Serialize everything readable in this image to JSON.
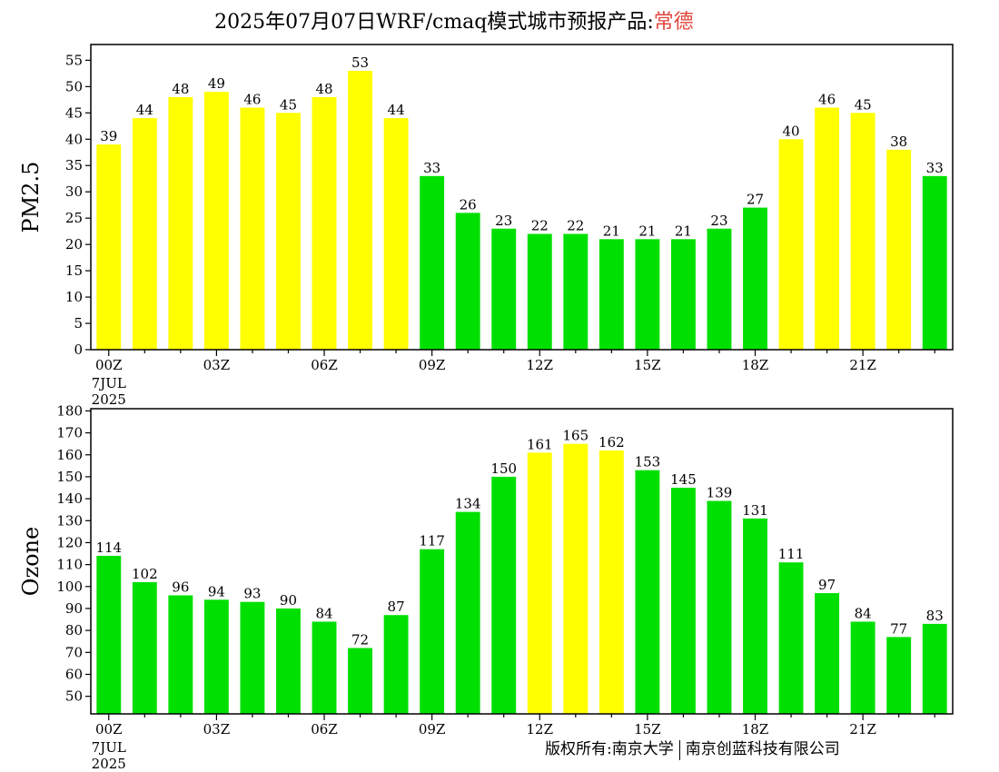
{
  "title": {
    "main": "2025年07月07日WRF/cmaq模式城市预报产品:",
    "city": "常德"
  },
  "colors": {
    "yellow": "#ffff00",
    "green": "#00e000",
    "city_red": "#e0463c"
  },
  "chart_data": [
    {
      "type": "bar",
      "ylabel": "PM2.5",
      "ylim": [
        0,
        58
      ],
      "yticks": [
        0,
        5,
        10,
        15,
        20,
        25,
        30,
        35,
        40,
        45,
        50,
        55
      ],
      "xticks": [
        {
          "index": 0,
          "label": "00Z",
          "sub": [
            "7JUL",
            "2025"
          ]
        },
        {
          "index": 3,
          "label": "03Z"
        },
        {
          "index": 6,
          "label": "06Z"
        },
        {
          "index": 9,
          "label": "09Z"
        },
        {
          "index": 12,
          "label": "12Z"
        },
        {
          "index": 15,
          "label": "15Z"
        },
        {
          "index": 18,
          "label": "18Z"
        },
        {
          "index": 21,
          "label": "21Z"
        }
      ],
      "values": [
        39,
        44,
        48,
        49,
        46,
        45,
        48,
        53,
        44,
        33,
        26,
        23,
        22,
        22,
        21,
        21,
        21,
        23,
        27,
        40,
        46,
        45,
        38,
        33
      ],
      "bar_colors": [
        "yellow",
        "yellow",
        "yellow",
        "yellow",
        "yellow",
        "yellow",
        "yellow",
        "yellow",
        "yellow",
        "green",
        "green",
        "green",
        "green",
        "green",
        "green",
        "green",
        "green",
        "green",
        "green",
        "yellow",
        "yellow",
        "yellow",
        "yellow",
        "green"
      ]
    },
    {
      "type": "bar",
      "ylabel": "Ozone",
      "ylim": [
        42,
        181
      ],
      "yticks": [
        50,
        60,
        70,
        80,
        90,
        100,
        110,
        120,
        130,
        140,
        150,
        160,
        170,
        180
      ],
      "xticks": [
        {
          "index": 0,
          "label": "00Z",
          "sub": [
            "7JUL",
            "2025"
          ]
        },
        {
          "index": 3,
          "label": "03Z"
        },
        {
          "index": 6,
          "label": "06Z"
        },
        {
          "index": 9,
          "label": "09Z"
        },
        {
          "index": 12,
          "label": "12Z"
        },
        {
          "index": 15,
          "label": "15Z"
        },
        {
          "index": 18,
          "label": "18Z"
        },
        {
          "index": 21,
          "label": "21Z"
        }
      ],
      "values": [
        114,
        102,
        96,
        94,
        93,
        90,
        84,
        72,
        87,
        117,
        134,
        150,
        161,
        165,
        162,
        153,
        145,
        139,
        131,
        111,
        97,
        84,
        77,
        83
      ],
      "bar_colors": [
        "green",
        "green",
        "green",
        "green",
        "green",
        "green",
        "green",
        "green",
        "green",
        "green",
        "green",
        "green",
        "yellow",
        "yellow",
        "yellow",
        "green",
        "green",
        "green",
        "green",
        "green",
        "green",
        "green",
        "green",
        "green"
      ]
    }
  ],
  "footer": {
    "left": "版权所有:南京大学",
    "right": "南京创蓝科技有限公司"
  }
}
